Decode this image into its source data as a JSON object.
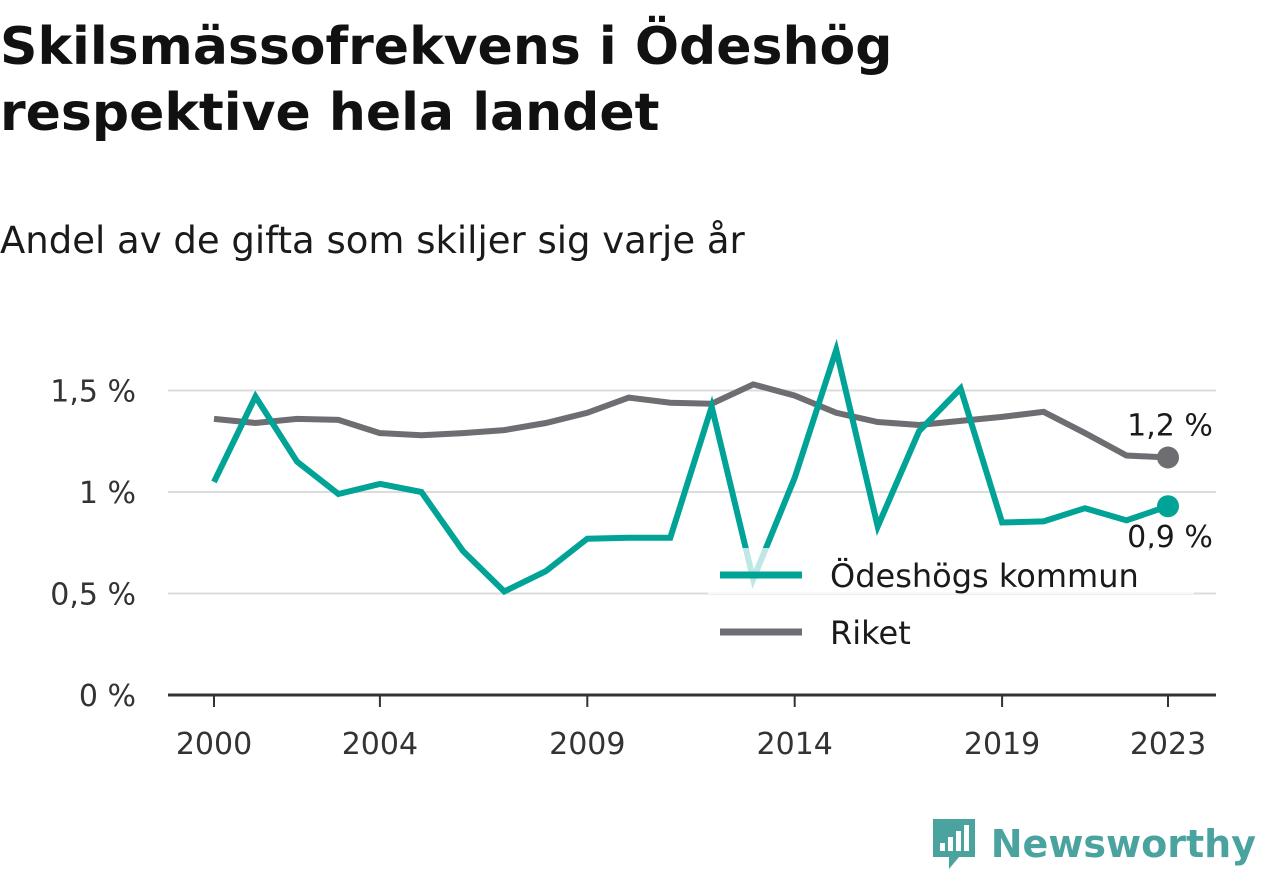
{
  "header": {
    "title": "Skilsmässofrekvens i Ödeshög respektive hela landet",
    "subtitle": "Andel av de gifta som skiljer sig varje år"
  },
  "brand": {
    "name": "Newsworthy",
    "color": "#4aa39f",
    "icon": "newsworthy-logo-icon"
  },
  "chart_data": {
    "type": "line",
    "title": "Skilsmässofrekvens i Ödeshög respektive hela landet",
    "subtitle": "Andel av de gifta som skiljer sig varje år",
    "x": [
      2000,
      2001,
      2002,
      2003,
      2004,
      2005,
      2006,
      2007,
      2008,
      2009,
      2010,
      2011,
      2012,
      2013,
      2014,
      2015,
      2016,
      2017,
      2018,
      2019,
      2020,
      2021,
      2022,
      2023
    ],
    "x_ticks": [
      2000,
      2004,
      2009,
      2014,
      2019,
      2023
    ],
    "x_tick_labels": [
      "2000",
      "2004",
      "2009",
      "2014",
      "2019",
      "2023"
    ],
    "y_ticks": [
      0,
      0.5,
      1,
      1.5
    ],
    "y_tick_labels": [
      "0 %",
      "0,5 %",
      "1 %",
      "1,5 %"
    ],
    "ylim": [
      0,
      1.8
    ],
    "grid": "horizontal",
    "legend_position": "bottom-right",
    "series": [
      {
        "name": "Ödeshögs kommun",
        "color": "#00a396",
        "values": [
          1.05,
          1.47,
          1.15,
          0.99,
          1.04,
          1.0,
          0.71,
          0.51,
          0.61,
          0.77,
          0.775,
          0.775,
          1.42,
          0.57,
          1.07,
          1.7,
          0.83,
          1.3,
          1.51,
          0.85,
          0.855,
          0.92,
          0.86,
          0.93
        ],
        "end_label": "0,9 %"
      },
      {
        "name": "Riket",
        "color": "#6d6d72",
        "values": [
          1.36,
          1.34,
          1.36,
          1.355,
          1.29,
          1.28,
          1.29,
          1.305,
          1.34,
          1.39,
          1.465,
          1.44,
          1.435,
          1.53,
          1.475,
          1.39,
          1.345,
          1.33,
          1.35,
          1.37,
          1.395,
          1.29,
          1.18,
          1.17
        ],
        "end_label": "1,2 %"
      }
    ]
  }
}
